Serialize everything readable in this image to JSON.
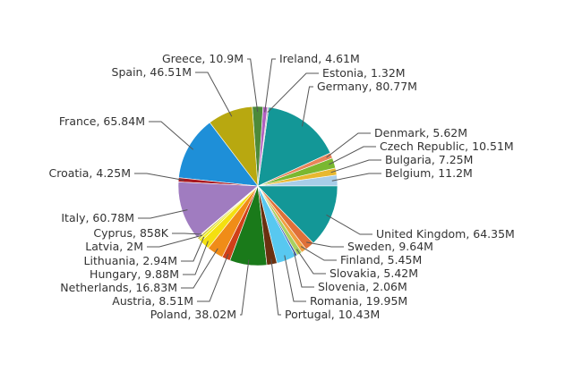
{
  "chart_data": {
    "type": "pie",
    "title": "",
    "legend": "none",
    "slices": [
      {
        "label": "Belgium",
        "value": 11.2,
        "display": "11.2M",
        "color": "#a8cde8"
      },
      {
        "label": "Bulgaria",
        "value": 7.25,
        "display": "7.25M",
        "color": "#e8b830"
      },
      {
        "label": "Czech Republic",
        "value": 10.51,
        "display": "10.51M",
        "color": "#7ab830"
      },
      {
        "label": "Denmark",
        "value": 5.62,
        "display": "5.62M",
        "color": "#e8845a"
      },
      {
        "label": "Germany",
        "value": 80.77,
        "display": "80.77M",
        "color": "#139797"
      },
      {
        "label": "Estonia",
        "value": 1.32,
        "display": "1.32M",
        "color": "#b0b0b0"
      },
      {
        "label": "Ireland",
        "value": 4.61,
        "display": "4.61M",
        "color": "#b060c0"
      },
      {
        "label": "Greece",
        "value": 10.9,
        "display": "10.9M",
        "color": "#4c8a3a"
      },
      {
        "label": "Spain",
        "value": 46.51,
        "display": "46.51M",
        "color": "#b8a810"
      },
      {
        "label": "France",
        "value": 65.84,
        "display": "65.84M",
        "color": "#1e8fd8"
      },
      {
        "label": "Croatia",
        "value": 4.25,
        "display": "4.25M",
        "color": "#a81820"
      },
      {
        "label": "Italy",
        "value": 60.78,
        "display": "60.78M",
        "color": "#a07cc0"
      },
      {
        "label": "Cyprus",
        "value": 0.858,
        "display": "858K",
        "color": "#f0d080"
      },
      {
        "label": "Latvia",
        "value": 2.0,
        "display": "2M",
        "color": "#c8c030"
      },
      {
        "label": "Lithuania",
        "value": 2.94,
        "display": "2.94M",
        "color": "#f0f020"
      },
      {
        "label": "Hungary",
        "value": 9.88,
        "display": "9.88M",
        "color": "#f4e010"
      },
      {
        "label": "Netherlands",
        "value": 16.83,
        "display": "16.83M",
        "color": "#f08c18"
      },
      {
        "label": "Austria",
        "value": 8.51,
        "display": "8.51M",
        "color": "#d04018"
      },
      {
        "label": "Poland",
        "value": 38.02,
        "display": "38.02M",
        "color": "#1a7a1a"
      },
      {
        "label": "Portugal",
        "value": 10.43,
        "display": "10.43M",
        "color": "#6a3010"
      },
      {
        "label": "Romania",
        "value": 19.95,
        "display": "19.95M",
        "color": "#58c8f0"
      },
      {
        "label": "Slovenia",
        "value": 2.06,
        "display": "2.06M",
        "color": "#3858b0"
      },
      {
        "label": "Slovakia",
        "value": 5.42,
        "display": "5.42M",
        "color": "#a8d060"
      },
      {
        "label": "Finland",
        "value": 5.45,
        "display": "5.45M",
        "color": "#f0a040"
      },
      {
        "label": "Sweden",
        "value": 9.64,
        "display": "9.64M",
        "color": "#e07038"
      },
      {
        "label": "United Kingdom",
        "value": 64.35,
        "display": "64.35M",
        "color": "#139797"
      }
    ]
  }
}
